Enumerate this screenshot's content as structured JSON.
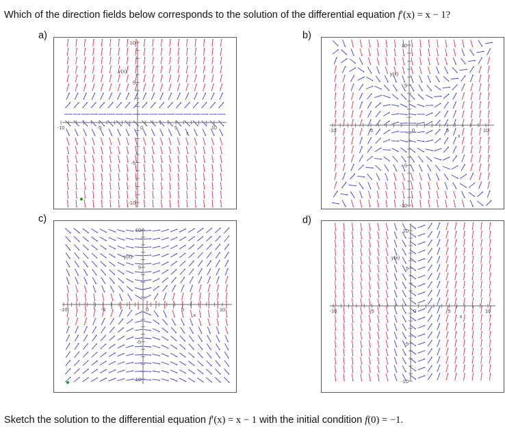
{
  "question": {
    "prefix": "Which of the direction fields below corresponds to the solution of the differential equation ",
    "fname": "f",
    "prime_arg": "′(x)",
    "eq_rhs": " = x − 1?"
  },
  "panels": [
    {
      "id": "a",
      "label": "a)",
      "ylabel": "y(x)",
      "xlabel": "x",
      "ticks": {
        "xmin": "-10",
        "xmid_neg": "-5",
        "xzero": "0",
        "xmid_pos": "5",
        "xmax": "10",
        "ytop": "10",
        "ymid_pos": "5",
        "ymid_neg": "-5",
        "ybot": "-10"
      },
      "slope_rule": "y - 1 (horizontal slopes near y = 1)",
      "dot_color": "#1a9a1a"
    },
    {
      "id": "b",
      "label": "b)",
      "ylabel": "y(x)",
      "xlabel": "x",
      "ticks": {
        "xmin": "-10",
        "xmid_neg": "-5",
        "xzero": "0",
        "xmid_pos": "5",
        "xmax": "10",
        "ytop": "10",
        "ymid_pos": "5",
        "ymid_neg": "-5",
        "ybot": "-10"
      },
      "slope_rule": "saddle around origin"
    },
    {
      "id": "c",
      "label": "c)",
      "ylabel": "y(x)",
      "xlabel": "x",
      "ticks": {
        "xmin": "-10",
        "xmid_neg": "-5",
        "xzero": "0",
        "xmid_pos": "5",
        "xmax": "10",
        "ytop": "10",
        "ymid_pos": "5",
        "ymid_neg": "-5",
        "ybot": "-10"
      },
      "slope_rule": "x / y",
      "dot_color": "#1a9a1a"
    },
    {
      "id": "d",
      "label": "d)",
      "ylabel": "y(x)",
      "xlabel": "x",
      "ticks": {
        "xmin": "-10",
        "xmid_neg": "-5",
        "xzero": "0",
        "xmid_pos": "5",
        "xmax": "10",
        "ytop": "10",
        "ymid_pos": "5",
        "ymid_neg": "-5",
        "ybot": "-10"
      },
      "slope_rule": "x - 1 (horizontal slopes near x = 1)"
    }
  ],
  "colors": {
    "steep": "#e0304a",
    "shallow": "#3a3ae6",
    "axis": "#666666",
    "border": "#555555"
  },
  "sketch": {
    "prefix": "Sketch the solution to the differential equation ",
    "fname": "f",
    "prime_arg": "′(x)",
    "eq_rhs": " = x − 1",
    "middle": " with the initial condition ",
    "init_f": "f",
    "init_rest": "(0) = −1."
  }
}
